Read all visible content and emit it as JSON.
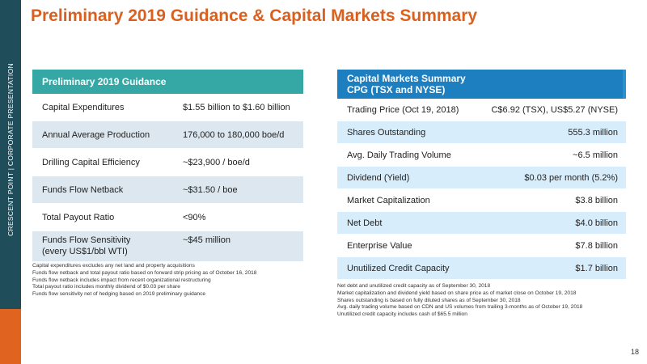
{
  "sidebar": {
    "text": "CRESCENT POINT   |   CORPORATE PRESENTATION"
  },
  "title": "Preliminary 2019 Guidance & Capital Markets Summary",
  "guidance": {
    "header": "Preliminary 2019 Guidance",
    "rows": [
      {
        "label": "Capital Expenditures",
        "value": "$1.55 billion to $1.60 billion"
      },
      {
        "label": "Annual Average Production",
        "value": "176,000 to 180,000 boe/d"
      },
      {
        "label": "Drilling Capital Efficiency",
        "value": "~$23,900 / boe/d"
      },
      {
        "label": "Funds Flow Netback",
        "value": "~$31.50 / boe"
      },
      {
        "label": "Total Payout Ratio",
        "value": "<90%"
      },
      {
        "label": "Funds Flow Sensitivity",
        "label2": "(every US$1/bbl WTI)",
        "value": "~$45 million"
      }
    ],
    "footnotes": [
      "Capital expenditures excludes any net land and property acquisitions",
      "Funds flow netback and total payout ratio based on forward strip pricing as of October 16, 2018",
      "Funds flow netback includes impact from recent organizational restructuring",
      "Total payout ratio includes monthly dividend of $0.03 per share",
      "Funds flow sensitivity net of hedging based on 2019 preliminary guidance"
    ]
  },
  "capital": {
    "header_line1": "Capital Markets Summary",
    "header_line2": "CPG (TSX and NYSE)",
    "rows": [
      {
        "label": "Trading Price (Oct 19, 2018)",
        "value": "C$6.92 (TSX), US$5.27 (NYSE)"
      },
      {
        "label": "Shares Outstanding",
        "value": "555.3 million"
      },
      {
        "label": "Avg. Daily Trading Volume",
        "value": "~6.5 million"
      },
      {
        "label": "Dividend (Yield)",
        "value": "$0.03 per month (5.2%)"
      },
      {
        "label": "Market Capitalization",
        "value": "$3.8 billion"
      },
      {
        "label": "Net Debt",
        "value": "$4.0 billion"
      },
      {
        "label": "Enterprise Value",
        "value": "$7.8 billion"
      },
      {
        "label": "Unutilized Credit Capacity",
        "value": "$1.7 billion"
      }
    ],
    "footnotes": [
      "Net debt and unutilized credit capacity as of September 30, 2018",
      "Market capitalization and dividend yield based on share price as of market close on October 19, 2018",
      "Shares outstanding is based on fully diluted shares as of September 30, 2018",
      "Avg. daily trading volume based on CDN and US volumes from trailing 3-months as of October 19, 2018",
      "Unutilized credit capacity includes cash of $65.5 million"
    ]
  },
  "page_number": "18",
  "colors": {
    "title": "#d9601e",
    "sidebar": "#1f4e5a",
    "accent": "#e0641f",
    "guidance_header": "#35a7a4",
    "capital_header": "#1d7ec0"
  }
}
